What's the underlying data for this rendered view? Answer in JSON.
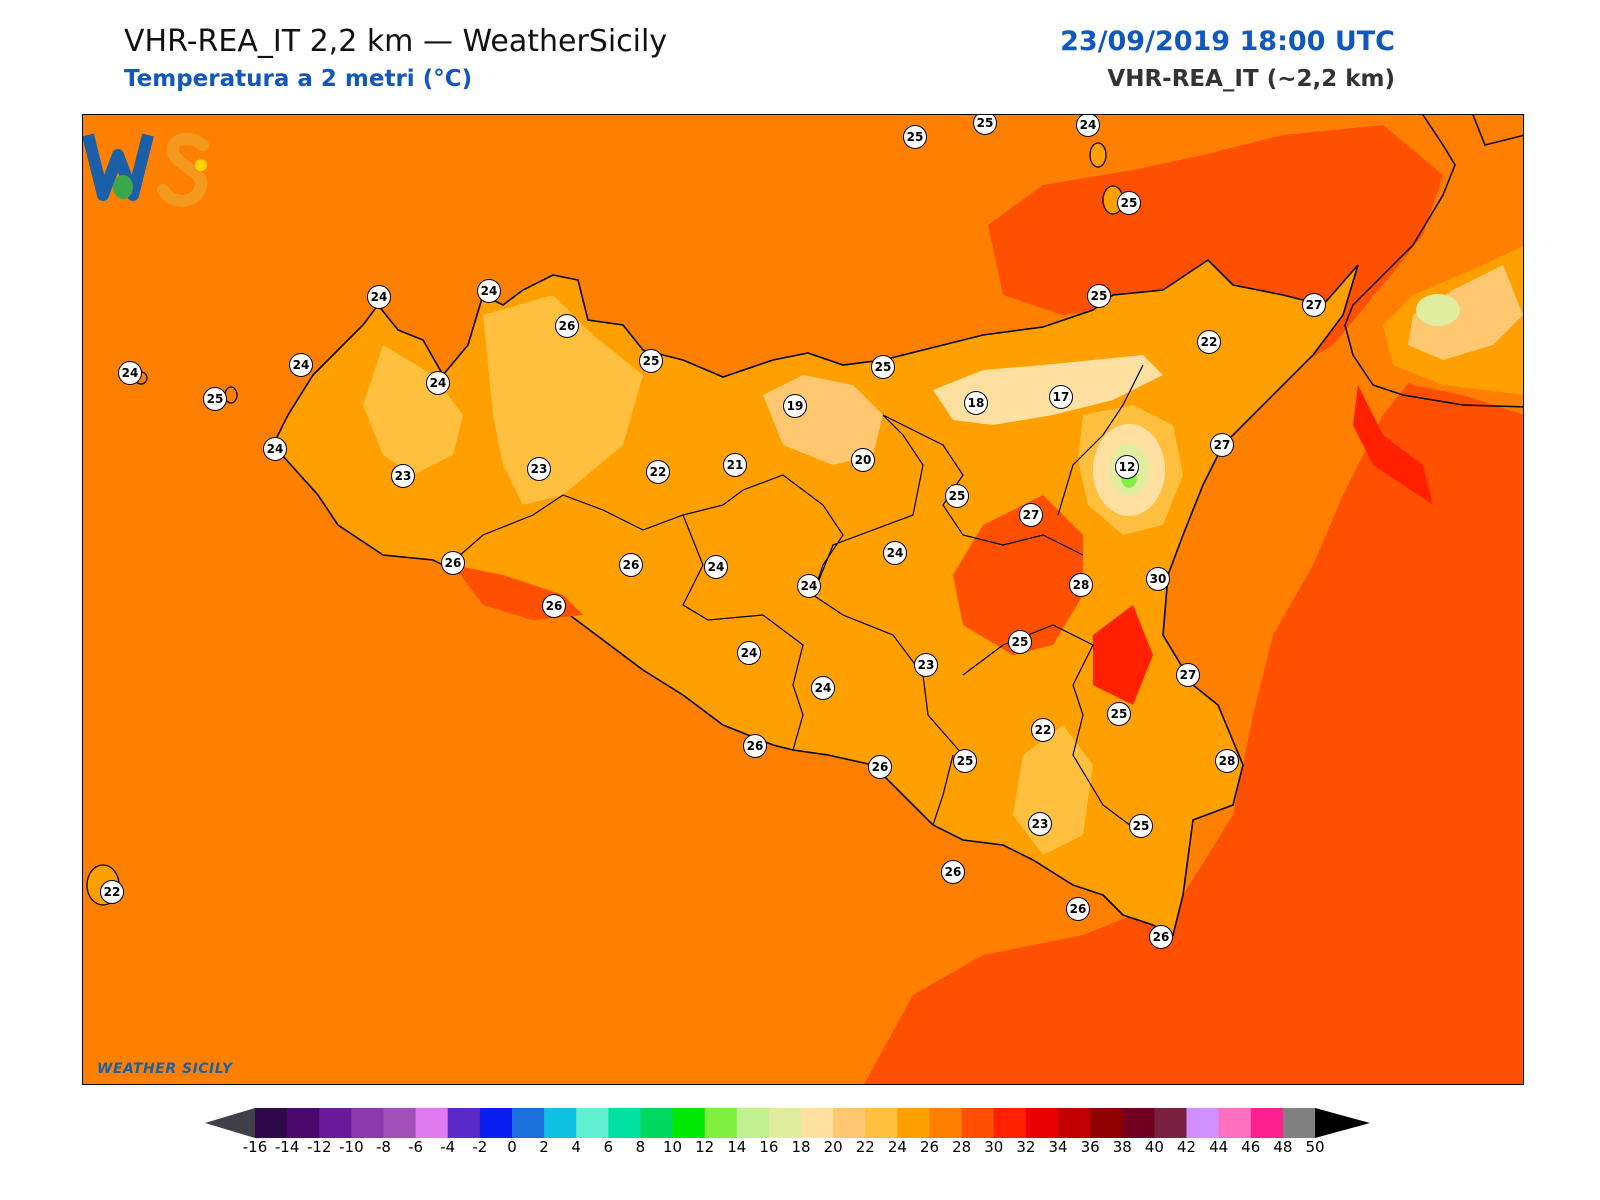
{
  "header": {
    "title": "VHR-REA_IT 2,2 km — WeatherSicily",
    "subtitle": "Temperatura a 2 metri (°C)",
    "datetime": "23/09/2019 18:00 UTC",
    "model": "VHR-REA_IT (~2,2 km)"
  },
  "logo": {
    "text": "WEATHER SICILY",
    "mark": "WS"
  },
  "colors": {
    "accent": "#1057c0",
    "background_field": "#ff8000"
  },
  "stations": [
    {
      "value": "25"
    },
    {
      "value": "25"
    },
    {
      "value": "24"
    },
    {
      "value": "25"
    },
    {
      "value": "24"
    },
    {
      "value": "24"
    },
    {
      "value": "26"
    },
    {
      "value": "24"
    },
    {
      "value": "24"
    },
    {
      "value": "24"
    },
    {
      "value": "25"
    },
    {
      "value": "25"
    },
    {
      "value": "25"
    },
    {
      "value": "27"
    },
    {
      "value": "22"
    },
    {
      "value": "19"
    },
    {
      "value": "18"
    },
    {
      "value": "17"
    },
    {
      "value": "24"
    },
    {
      "value": "23"
    },
    {
      "value": "23"
    },
    {
      "value": "22"
    },
    {
      "value": "21"
    },
    {
      "value": "20"
    },
    {
      "value": "12"
    },
    {
      "value": "27"
    },
    {
      "value": "25"
    },
    {
      "value": "27"
    },
    {
      "value": "25"
    },
    {
      "value": "26"
    },
    {
      "value": "26"
    },
    {
      "value": "26"
    },
    {
      "value": "24"
    },
    {
      "value": "24"
    },
    {
      "value": "24"
    },
    {
      "value": "28"
    },
    {
      "value": "30"
    },
    {
      "value": "25"
    },
    {
      "value": "24"
    },
    {
      "value": "24"
    },
    {
      "value": "23"
    },
    {
      "value": "27"
    },
    {
      "value": "22"
    },
    {
      "value": "25"
    },
    {
      "value": "26"
    },
    {
      "value": "26"
    },
    {
      "value": "25"
    },
    {
      "value": "28"
    },
    {
      "value": "23"
    },
    {
      "value": "25"
    },
    {
      "value": "26"
    },
    {
      "value": "26"
    },
    {
      "value": "26"
    },
    {
      "value": "22"
    }
  ],
  "colorbar": {
    "labels": [
      "-16",
      "-14",
      "-12",
      "-10",
      "-8",
      "-6",
      "-4",
      "-2",
      "0",
      "2",
      "4",
      "6",
      "8",
      "10",
      "12",
      "14",
      "16",
      "18",
      "20",
      "22",
      "24",
      "26",
      "28",
      "30",
      "32",
      "34",
      "36",
      "38",
      "40",
      "42",
      "44",
      "46",
      "48",
      "50"
    ],
    "colors": [
      "#2e0a4a",
      "#4b0a6b",
      "#6a1a9a",
      "#8a3aaa",
      "#a050b8",
      "#e07af0",
      "#5a2ac8",
      "#0a20f0",
      "#1a70d8",
      "#10c0e0",
      "#60f0d0",
      "#00e0a0",
      "#00d860",
      "#00e800",
      "#80f040",
      "#c0f090",
      "#e0eda0",
      "#ffe0a0",
      "#ffc870",
      "#ffc040",
      "#ffa000",
      "#ff8000",
      "#ff5000",
      "#ff2000",
      "#e80000",
      "#c00000",
      "#900000",
      "#700020",
      "#7a2040",
      "#d090ff",
      "#ff70c0",
      "#ff2090",
      "#808080",
      "#383838"
    ],
    "under_color": "#404048",
    "over_color": "#000000"
  }
}
